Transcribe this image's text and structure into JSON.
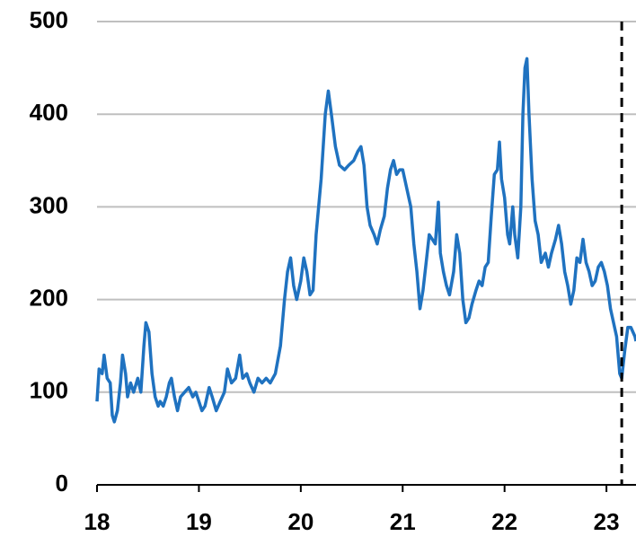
{
  "chart_data": {
    "type": "line",
    "x": [
      18.0,
      18.02,
      18.05,
      18.07,
      18.1,
      18.13,
      18.15,
      18.17,
      18.2,
      18.23,
      18.25,
      18.28,
      18.3,
      18.33,
      18.36,
      18.4,
      18.43,
      18.46,
      18.48,
      18.51,
      18.54,
      18.57,
      18.6,
      18.62,
      18.65,
      18.68,
      18.71,
      18.73,
      18.76,
      18.79,
      18.82,
      18.86,
      18.9,
      18.94,
      18.97,
      19.0,
      19.03,
      19.06,
      19.1,
      19.13,
      19.17,
      19.21,
      19.25,
      19.28,
      19.32,
      19.36,
      19.4,
      19.43,
      19.47,
      19.5,
      19.54,
      19.58,
      19.62,
      19.66,
      19.7,
      19.75,
      19.8,
      19.84,
      19.87,
      19.9,
      19.93,
      19.96,
      20.0,
      20.03,
      20.06,
      20.09,
      20.12,
      20.15,
      20.2,
      20.24,
      20.27,
      20.3,
      20.34,
      20.38,
      20.43,
      20.47,
      20.52,
      20.56,
      20.59,
      20.62,
      20.65,
      20.68,
      20.72,
      20.75,
      20.78,
      20.82,
      20.85,
      20.88,
      20.91,
      20.94,
      20.97,
      21.0,
      21.04,
      21.08,
      21.11,
      21.14,
      21.17,
      21.2,
      21.23,
      21.26,
      21.29,
      21.32,
      21.35,
      21.37,
      21.4,
      21.43,
      21.46,
      21.5,
      21.53,
      21.56,
      21.59,
      21.62,
      21.65,
      21.68,
      21.72,
      21.75,
      21.78,
      21.81,
      21.84,
      21.87,
      21.9,
      21.93,
      21.95,
      21.97,
      22.0,
      22.03,
      22.05,
      22.08,
      22.1,
      22.13,
      22.16,
      22.18,
      22.2,
      22.22,
      22.24,
      22.27,
      22.3,
      22.33,
      22.36,
      22.4,
      22.43,
      22.46,
      22.5,
      22.53,
      22.56,
      22.59,
      22.62,
      22.65,
      22.68,
      22.71,
      22.74,
      22.77,
      22.8,
      22.83,
      22.86,
      22.89,
      22.92,
      22.95,
      22.98,
      23.01,
      23.04,
      23.07,
      23.1,
      23.13,
      23.15,
      23.18,
      23.21,
      23.24,
      23.28,
      23.29
    ],
    "values": [
      90,
      125,
      120,
      140,
      115,
      110,
      75,
      68,
      80,
      110,
      140,
      120,
      95,
      110,
      100,
      115,
      100,
      150,
      175,
      165,
      120,
      95,
      85,
      90,
      85,
      95,
      110,
      115,
      95,
      80,
      95,
      100,
      105,
      95,
      100,
      90,
      80,
      85,
      105,
      95,
      80,
      90,
      100,
      125,
      110,
      115,
      140,
      115,
      120,
      110,
      100,
      115,
      110,
      115,
      110,
      120,
      150,
      200,
      230,
      245,
      215,
      200,
      220,
      245,
      230,
      205,
      210,
      270,
      330,
      400,
      425,
      400,
      365,
      345,
      340,
      345,
      350,
      360,
      365,
      345,
      300,
      280,
      270,
      260,
      275,
      290,
      320,
      340,
      350,
      335,
      340,
      340,
      320,
      300,
      260,
      230,
      190,
      210,
      240,
      270,
      265,
      260,
      305,
      250,
      230,
      215,
      205,
      230,
      270,
      250,
      200,
      175,
      180,
      195,
      210,
      220,
      215,
      235,
      240,
      290,
      335,
      340,
      370,
      330,
      310,
      270,
      260,
      300,
      270,
      245,
      300,
      400,
      450,
      460,
      400,
      330,
      285,
      270,
      240,
      250,
      235,
      250,
      265,
      280,
      260,
      230,
      215,
      195,
      210,
      245,
      240,
      265,
      240,
      230,
      215,
      220,
      235,
      240,
      230,
      215,
      190,
      175,
      160,
      120,
      115,
      145,
      170,
      170,
      160,
      155
    ],
    "color": "#1f72c0",
    "xlim": [
      18,
      23.29
    ],
    "xticks": [
      18,
      19,
      20,
      21,
      22,
      23
    ],
    "ylim": [
      0,
      500
    ],
    "yticks": [
      0,
      100,
      200,
      300,
      400,
      500
    ],
    "grid": true,
    "reference_line_x": 23.15
  }
}
